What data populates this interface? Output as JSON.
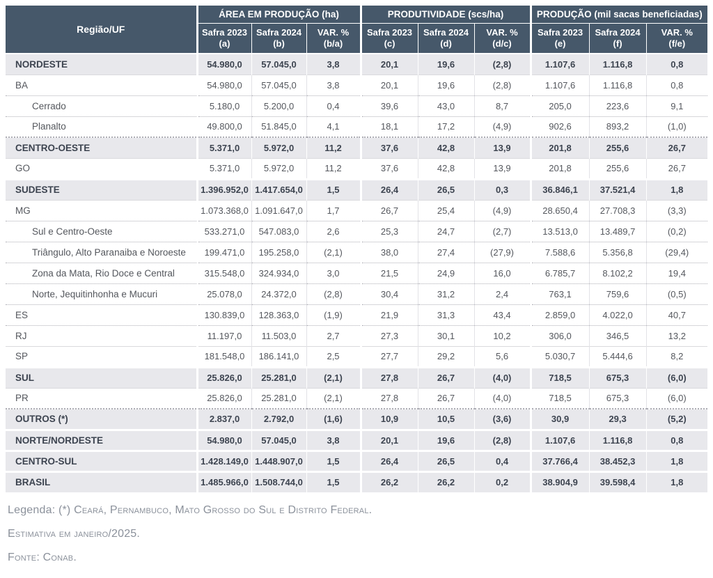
{
  "table": {
    "region_header": "Região/UF",
    "groups": [
      {
        "label": "ÁREA EM PRODUÇÃO (ha)",
        "columns": [
          {
            "line1": "Safra 2023",
            "line2": "(a)"
          },
          {
            "line1": "Safra 2024",
            "line2": "(b)"
          },
          {
            "line1": "VAR. %",
            "line2": "(b/a)"
          }
        ]
      },
      {
        "label": "PRODUTIVIDADE (scs/ha)",
        "columns": [
          {
            "line1": "Safra 2023",
            "line2": "(c)"
          },
          {
            "line1": "Safra 2024",
            "line2": "(d)"
          },
          {
            "line1": "VAR. %",
            "line2": "(d/c)"
          }
        ]
      },
      {
        "label": "PRODUÇÃO (mil sacas beneficiadas)",
        "columns": [
          {
            "line1": "Safra 2023",
            "line2": "(e)"
          },
          {
            "line1": "Safra 2024",
            "line2": "(f)"
          },
          {
            "line1": "VAR. %",
            "line2": "(f/e)"
          }
        ]
      }
    ],
    "rows": [
      {
        "label": "NORDESTE",
        "type": "group",
        "values": [
          "54.980,0",
          "57.045,0",
          "3,8",
          "20,1",
          "19,6",
          "(2,8)",
          "1.107,6",
          "1.116,8",
          "0,8"
        ]
      },
      {
        "label": "BA",
        "type": "state",
        "values": [
          "54.980,0",
          "57.045,0",
          "3,8",
          "20,1",
          "19,6",
          "(2,8)",
          "1.107,6",
          "1.116,8",
          "0,8"
        ]
      },
      {
        "label": "Cerrado",
        "type": "sub",
        "dotted": true,
        "values": [
          "5.180,0",
          "5.200,0",
          "0,4",
          "39,6",
          "43,0",
          "8,7",
          "205,0",
          "223,6",
          "9,1"
        ]
      },
      {
        "label": "Planalto",
        "type": "sub",
        "dotted": true,
        "values": [
          "49.800,0",
          "51.845,0",
          "4,1",
          "18,1",
          "17,2",
          "(4,9)",
          "902,6",
          "893,2",
          "(1,0)"
        ]
      },
      {
        "label": "CENTRO-OESTE",
        "type": "group",
        "dotted": true,
        "values": [
          "5.371,0",
          "5.972,0",
          "11,2",
          "37,6",
          "42,8",
          "13,9",
          "201,8",
          "255,6",
          "26,7"
        ]
      },
      {
        "label": "GO",
        "type": "state",
        "values": [
          "5.371,0",
          "5.972,0",
          "11,2",
          "37,6",
          "42,8",
          "13,9",
          "201,8",
          "255,6",
          "26,7"
        ]
      },
      {
        "label": "SUDESTE",
        "type": "group",
        "values": [
          "1.396.952,0",
          "1.417.654,0",
          "1,5",
          "26,4",
          "26,5",
          "0,3",
          "36.846,1",
          "37.521,4",
          "1,8"
        ]
      },
      {
        "label": "MG",
        "type": "state",
        "values": [
          "1.073.368,0",
          "1.091.647,0",
          "1,7",
          "26,7",
          "25,4",
          "(4,9)",
          "28.650,4",
          "27.708,3",
          "(3,3)"
        ]
      },
      {
        "label": "Sul e Centro-Oeste",
        "type": "sub",
        "dotted": true,
        "values": [
          "533.271,0",
          "547.083,0",
          "2,6",
          "25,3",
          "24,7",
          "(2,7)",
          "13.513,0",
          "13.489,7",
          "(0,2)"
        ]
      },
      {
        "label": "Triângulo, Alto Paranaiba e Noroeste",
        "type": "sub",
        "dotted": true,
        "values": [
          "199.471,0",
          "195.258,0",
          "(2,1)",
          "38,0",
          "27,4",
          "(27,9)",
          "7.588,6",
          "5.356,8",
          "(29,4)"
        ]
      },
      {
        "label": "Zona da Mata, Rio Doce e Central",
        "type": "sub",
        "dotted": true,
        "values": [
          "315.548,0",
          "324.934,0",
          "3,0",
          "21,5",
          "24,9",
          "16,0",
          "6.785,7",
          "8.102,2",
          "19,4"
        ]
      },
      {
        "label": "Norte, Jequitinhonha e Mucuri",
        "type": "sub",
        "dotted": true,
        "values": [
          "25.078,0",
          "24.372,0",
          "(2,8)",
          "30,4",
          "31,2",
          "2,4",
          "763,1",
          "759,6",
          "(0,5)"
        ]
      },
      {
        "label": "ES",
        "type": "state",
        "dotted": true,
        "values": [
          "130.839,0",
          "128.363,0",
          "(1,9)",
          "21,9",
          "31,3",
          "43,4",
          "2.859,0",
          "4.022,0",
          "40,7"
        ]
      },
      {
        "label": "RJ",
        "type": "state",
        "dotted": true,
        "values": [
          "11.197,0",
          "11.503,0",
          "2,7",
          "27,3",
          "30,1",
          "10,2",
          "306,0",
          "346,5",
          "13,2"
        ]
      },
      {
        "label": "SP",
        "type": "state",
        "values": [
          "181.548,0",
          "186.141,0",
          "2,5",
          "27,7",
          "29,2",
          "5,6",
          "5.030,7",
          "5.444,6",
          "8,2"
        ]
      },
      {
        "label": "SUL",
        "type": "group",
        "values": [
          "25.826,0",
          "25.281,0",
          "(2,1)",
          "27,8",
          "26,7",
          "(4,0)",
          "718,5",
          "675,3",
          "(6,0)"
        ]
      },
      {
        "label": "PR",
        "type": "state",
        "values": [
          "25.826,0",
          "25.281,0",
          "(2,1)",
          "27,8",
          "26,7",
          "(4,0)",
          "718,5",
          "675,3",
          "(6,0)"
        ]
      },
      {
        "label": "OUTROS (*)",
        "type": "group",
        "dotted": true,
        "values": [
          "2.837,0",
          "2.792,0",
          "(1,6)",
          "10,9",
          "10,5",
          "(3,6)",
          "30,9",
          "29,3",
          "(5,2)"
        ]
      },
      {
        "label": "NORTE/NORDESTE",
        "type": "group",
        "values": [
          "54.980,0",
          "57.045,0",
          "3,8",
          "20,1",
          "19,6",
          "(2,8)",
          "1.107,6",
          "1.116,8",
          "0,8"
        ]
      },
      {
        "label": "CENTRO-SUL",
        "type": "group",
        "values": [
          "1.428.149,0",
          "1.448.907,0",
          "1,5",
          "26,4",
          "26,5",
          "0,4",
          "37.766,4",
          "38.452,3",
          "1,8"
        ]
      },
      {
        "label": "BRASIL",
        "type": "group",
        "values": [
          "1.485.966,0",
          "1.508.744,0",
          "1,5",
          "26,2",
          "26,2",
          "0,2",
          "38.904,9",
          "39.598,4",
          "1,8"
        ]
      }
    ]
  },
  "legend": {
    "prefix": "Legenda: (*) ",
    "states": "Ceará, Pernambuco, Mato Grosso do Sul e Distrito Federal.",
    "estimate": "Estimativa em janeiro/2025.",
    "source": "Fonte: Conab."
  },
  "colors": {
    "header_bg": "#46586a",
    "group_row_bg": "#e8e8ec",
    "body_text": "#55585e",
    "legend_text": "#8b919b"
  }
}
